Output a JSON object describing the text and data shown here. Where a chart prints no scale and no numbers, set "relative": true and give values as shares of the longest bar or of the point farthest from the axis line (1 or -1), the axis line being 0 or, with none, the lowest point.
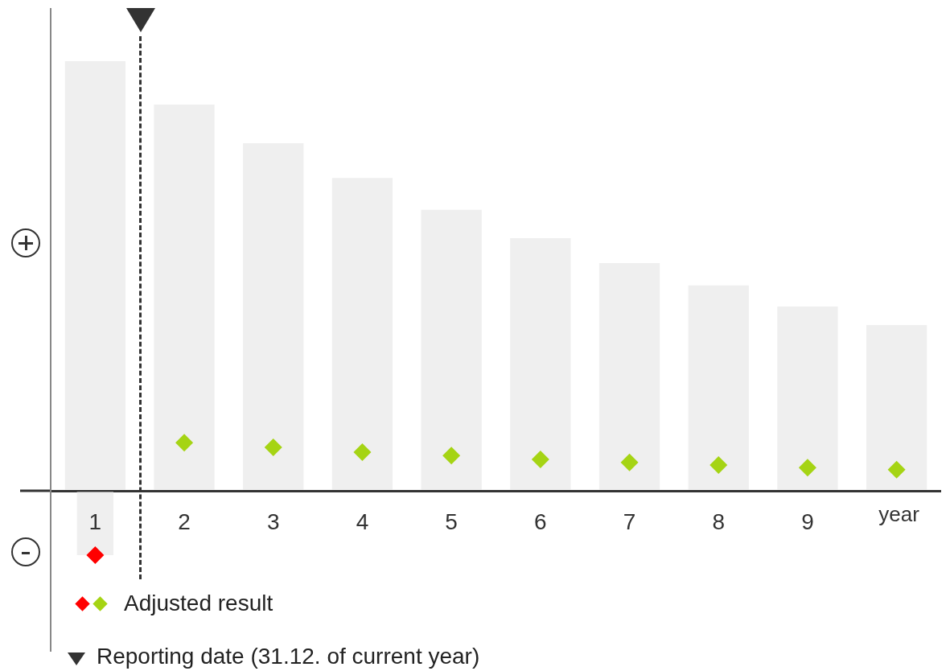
{
  "chart_data": {
    "type": "bar",
    "relative": true,
    "xlabel": "year",
    "categories": [
      "1",
      "2",
      "3",
      "4",
      "5",
      "6",
      "7",
      "8",
      "9",
      null
    ],
    "series": [
      {
        "color": "#efefef",
        "values": [
          1,
          0.899,
          0.809,
          0.728,
          0.654,
          0.588,
          0.53,
          0.478,
          0.429,
          0.386
        ]
      },
      {
        "color": "#efefef",
        "values": [
          -0.15,
          null,
          null,
          null,
          null,
          null,
          null,
          null,
          null,
          null
        ]
      },
      {
        "type": "scatter",
        "name": "Adjusted result",
        "colors": [
          "#ff0000",
          "#a5d414",
          "#a5d414",
          "#a5d414",
          "#a5d414",
          "#a5d414",
          "#a5d414",
          "#a5d414",
          "#a5d414",
          "#a5d414"
        ],
        "values": [
          -0.15,
          0.112,
          0.101,
          0.09,
          0.082,
          0.073,
          0.066,
          0.06,
          0.054,
          0.049
        ]
      }
    ],
    "marker": "diamond",
    "legend": "bottom",
    "annotations": [
      "Reporting date (31.12. of current year)"
    ]
  }
}
